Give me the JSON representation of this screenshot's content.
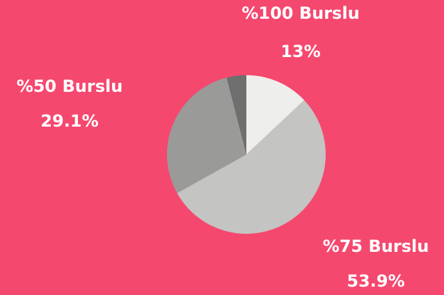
{
  "chart_data": {
    "type": "pie",
    "categories": [
      "%100 Burslu",
      "%75 Burslu",
      "%50 Burslu",
      null
    ],
    "values": [
      13,
      53.9,
      29.1,
      4
    ],
    "value_labels": [
      "13%",
      "53.9%",
      "29.1%",
      null
    ],
    "colors": [
      "#eeeeec",
      "#c4c4c2",
      "#9a9b99",
      "#6e6f6e"
    ]
  }
}
